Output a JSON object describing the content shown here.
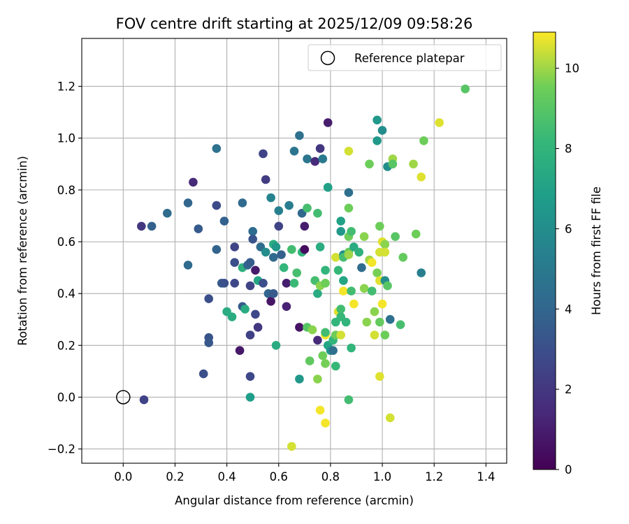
{
  "chart_data": {
    "type": "scatter",
    "title": "FOV centre drift starting at 2025/12/09 09:58:26",
    "xlabel": "Angular distance from reference (arcmin)",
    "ylabel": "Rotation from reference (arcmin)",
    "xlim": [
      -0.16,
      1.48
    ],
    "ylim": [
      -0.255,
      1.385
    ],
    "xticks": [
      0.0,
      0.2,
      0.4,
      0.6,
      0.8,
      1.0,
      1.2,
      1.4
    ],
    "xtick_labels": [
      "0.0",
      "0.2",
      "0.4",
      "0.6",
      "0.8",
      "1.0",
      "1.2",
      "1.4"
    ],
    "yticks": [
      -0.2,
      0.0,
      0.2,
      0.4,
      0.6,
      0.8,
      1.0,
      1.2
    ],
    "ytick_labels": [
      "−0.2",
      "0.0",
      "0.2",
      "0.4",
      "0.6",
      "0.8",
      "1.0",
      "1.2"
    ],
    "grid": true,
    "legend": {
      "position": "top-right",
      "entries": [
        "Reference platepar"
      ]
    },
    "reference_point": {
      "x": 0.0,
      "y": 0.0,
      "label": "Reference platepar"
    },
    "colorbar": {
      "label": "Hours from first FF file",
      "colormap": "viridis",
      "range": [
        0,
        10.9
      ],
      "ticks": [
        0,
        2,
        4,
        6,
        8,
        10
      ],
      "tick_labels": [
        "0",
        "2",
        "4",
        "6",
        "8",
        "10"
      ]
    },
    "points": [
      [
        0.08,
        -0.01,
        2.5
      ],
      [
        0.07,
        0.66,
        2.0
      ],
      [
        0.11,
        0.66,
        3.8
      ],
      [
        0.17,
        0.71,
        4.3
      ],
      [
        0.27,
        0.83,
        1.5
      ],
      [
        0.25,
        0.75,
        4.0
      ],
      [
        0.25,
        0.51,
        4.2
      ],
      [
        0.29,
        0.65,
        3.5
      ],
      [
        0.31,
        0.09,
        3.0
      ],
      [
        0.33,
        0.38,
        3.0
      ],
      [
        0.33,
        0.23,
        3.2
      ],
      [
        0.33,
        0.21,
        3.4
      ],
      [
        0.36,
        0.96,
        4.6
      ],
      [
        0.36,
        0.74,
        2.8
      ],
      [
        0.36,
        0.57,
        3.9
      ],
      [
        0.38,
        0.44,
        3.5
      ],
      [
        0.39,
        0.44,
        3.0
      ],
      [
        0.39,
        0.68,
        3.8
      ],
      [
        0.4,
        0.33,
        7.5
      ],
      [
        0.42,
        0.31,
        7.5
      ],
      [
        0.43,
        0.58,
        2.5
      ],
      [
        0.43,
        0.52,
        3.0
      ],
      [
        0.43,
        0.44,
        2.7
      ],
      [
        0.45,
        0.18,
        0.8
      ],
      [
        0.46,
        0.35,
        3.5
      ],
      [
        0.46,
        0.5,
        7.8
      ],
      [
        0.46,
        0.75,
        4.2
      ],
      [
        0.47,
        0.34,
        7.5
      ],
      [
        0.48,
        0.51,
        4.0
      ],
      [
        0.49,
        0.43,
        2.5
      ],
      [
        0.49,
        0.24,
        2.4
      ],
      [
        0.49,
        0.08,
        2.7
      ],
      [
        0.49,
        0.0,
        6.8
      ],
      [
        0.49,
        0.52,
        3.6
      ],
      [
        0.5,
        0.64,
        4.3
      ],
      [
        0.5,
        0.61,
        3.2
      ],
      [
        0.51,
        0.49,
        0.9
      ],
      [
        0.51,
        0.32,
        2.7
      ],
      [
        0.52,
        0.45,
        7.2
      ],
      [
        0.52,
        0.27,
        2.0
      ],
      [
        0.53,
        0.58,
        4.3
      ],
      [
        0.54,
        0.44,
        3.0
      ],
      [
        0.54,
        0.94,
        2.5
      ],
      [
        0.55,
        0.84,
        2.2
      ],
      [
        0.55,
        0.56,
        6.0
      ],
      [
        0.56,
        0.4,
        4.0
      ],
      [
        0.57,
        0.37,
        0.7
      ],
      [
        0.57,
        0.77,
        5.5
      ],
      [
        0.58,
        0.59,
        7.5
      ],
      [
        0.58,
        0.54,
        4.2
      ],
      [
        0.58,
        0.4,
        3.5
      ],
      [
        0.59,
        0.2,
        7.5
      ],
      [
        0.59,
        0.58,
        6.5
      ],
      [
        0.6,
        0.72,
        5.3
      ],
      [
        0.6,
        0.66,
        2.5
      ],
      [
        0.61,
        0.55,
        3.8
      ],
      [
        0.62,
        0.5,
        8.1
      ],
      [
        0.63,
        0.44,
        1.0
      ],
      [
        0.63,
        0.35,
        1.2
      ],
      [
        0.64,
        0.74,
        5.2
      ],
      [
        0.65,
        0.57,
        8.5
      ],
      [
        0.65,
        -0.19,
        10.5
      ],
      [
        0.66,
        0.95,
        4.8
      ],
      [
        0.66,
        0.44,
        8.3
      ],
      [
        0.67,
        0.48,
        8.6
      ],
      [
        0.68,
        1.01,
        4.5
      ],
      [
        0.68,
        0.27,
        0.6
      ],
      [
        0.68,
        0.07,
        6.5
      ],
      [
        0.69,
        0.56,
        8.0
      ],
      [
        0.69,
        0.71,
        4.1
      ],
      [
        0.7,
        0.66,
        1.0
      ],
      [
        0.7,
        0.57,
        0.4
      ],
      [
        0.71,
        0.92,
        4.8
      ],
      [
        0.71,
        0.73,
        8.6
      ],
      [
        0.71,
        0.27,
        9.0
      ],
      [
        0.72,
        0.14,
        9.2
      ],
      [
        0.73,
        0.26,
        9.8
      ],
      [
        0.74,
        0.91,
        1.5
      ],
      [
        0.74,
        0.45,
        8.6
      ],
      [
        0.75,
        0.71,
        8.5
      ],
      [
        0.75,
        0.4,
        7.5
      ],
      [
        0.75,
        0.22,
        1.5
      ],
      [
        0.75,
        0.07,
        9.8
      ],
      [
        0.76,
        0.96,
        2.0
      ],
      [
        0.76,
        0.58,
        7.5
      ],
      [
        0.76,
        0.43,
        9.8
      ],
      [
        0.76,
        -0.05,
        10.8
      ],
      [
        0.77,
        0.92,
        5.0
      ],
      [
        0.77,
        0.16,
        9.5
      ],
      [
        0.78,
        0.44,
        9.5
      ],
      [
        0.78,
        0.24,
        10.8
      ],
      [
        0.78,
        0.25,
        8.5
      ],
      [
        0.78,
        0.49,
        8.0
      ],
      [
        0.78,
        0.13,
        9.6
      ],
      [
        0.78,
        -0.1,
        10.8
      ],
      [
        0.79,
        1.06,
        1.0
      ],
      [
        0.79,
        0.81,
        7.5
      ],
      [
        0.79,
        0.81,
        7.0
      ],
      [
        0.79,
        0.2,
        7.2
      ],
      [
        0.8,
        0.18,
        6.5
      ],
      [
        0.81,
        0.18,
        4.5
      ],
      [
        0.81,
        0.22,
        8.0
      ],
      [
        0.82,
        0.12,
        8.2
      ],
      [
        0.82,
        0.24,
        9.5
      ],
      [
        0.82,
        0.54,
        10.5
      ],
      [
        0.82,
        0.29,
        8.0
      ],
      [
        0.83,
        0.49,
        8.2
      ],
      [
        0.83,
        0.33,
        10.6
      ],
      [
        0.84,
        0.34,
        8.5
      ],
      [
        0.84,
        0.68,
        7.0
      ],
      [
        0.84,
        0.64,
        6.5
      ],
      [
        0.84,
        0.24,
        10.5
      ],
      [
        0.84,
        0.31,
        8.2
      ],
      [
        0.85,
        0.55,
        6.0
      ],
      [
        0.85,
        0.54,
        8.6
      ],
      [
        0.85,
        0.41,
        10.8
      ],
      [
        0.85,
        0.45,
        7.2
      ],
      [
        0.86,
        0.29,
        8.0
      ],
      [
        0.87,
        0.79,
        4.5
      ],
      [
        0.87,
        0.62,
        9.5
      ],
      [
        0.87,
        0.73,
        9.5
      ],
      [
        0.87,
        0.56,
        9.3
      ],
      [
        0.87,
        0.95,
        10.5
      ],
      [
        0.87,
        0.55,
        10.0
      ],
      [
        0.87,
        -0.01,
        8.5
      ],
      [
        0.88,
        0.64,
        8.5
      ],
      [
        0.88,
        0.19,
        8.0
      ],
      [
        0.88,
        0.41,
        8.5
      ],
      [
        0.89,
        0.36,
        10.8
      ],
      [
        0.89,
        0.58,
        7.5
      ],
      [
        0.91,
        0.56,
        7.8
      ],
      [
        0.92,
        0.5,
        4.3
      ],
      [
        0.93,
        0.42,
        9.8
      ],
      [
        0.93,
        0.62,
        9.8
      ],
      [
        0.94,
        0.29,
        9.8
      ],
      [
        0.95,
        0.9,
        9.5
      ],
      [
        0.95,
        0.53,
        10.0
      ],
      [
        0.96,
        0.52,
        10.8
      ],
      [
        0.96,
        0.41,
        8.5
      ],
      [
        0.97,
        0.24,
        10.5
      ],
      [
        0.97,
        0.33,
        9.8
      ],
      [
        0.98,
        0.99,
        6.5
      ],
      [
        0.98,
        0.48,
        9.6
      ],
      [
        0.98,
        1.07,
        6.5
      ],
      [
        0.99,
        0.29,
        9.3
      ],
      [
        0.99,
        0.45,
        10.6
      ],
      [
        0.99,
        0.08,
        10.6
      ],
      [
        0.99,
        0.66,
        9.5
      ],
      [
        0.99,
        0.56,
        10.5
      ],
      [
        1.0,
        0.36,
        10.8
      ],
      [
        1.0,
        0.6,
        10.6
      ],
      [
        1.0,
        1.03,
        6.0
      ],
      [
        1.01,
        0.45,
        6.0
      ],
      [
        1.01,
        0.59,
        9.8
      ],
      [
        1.01,
        0.56,
        10.5
      ],
      [
        1.01,
        0.24,
        9.5
      ],
      [
        1.02,
        0.43,
        9.0
      ],
      [
        1.02,
        0.89,
        6.0
      ],
      [
        1.03,
        0.3,
        4.5
      ],
      [
        1.03,
        -0.08,
        10.5
      ],
      [
        1.04,
        0.92,
        10.0
      ],
      [
        1.04,
        0.9,
        9.0
      ],
      [
        1.05,
        0.62,
        9.0
      ],
      [
        1.07,
        0.28,
        8.6
      ],
      [
        1.08,
        0.54,
        9.3
      ],
      [
        1.12,
        0.9,
        10.0
      ],
      [
        1.13,
        0.63,
        9.5
      ],
      [
        1.15,
        0.85,
        10.6
      ],
      [
        1.15,
        0.48,
        5.3
      ],
      [
        1.16,
        0.99,
        9.5
      ],
      [
        1.22,
        1.06,
        10.6
      ],
      [
        1.32,
        1.19,
        9.0
      ]
    ]
  }
}
